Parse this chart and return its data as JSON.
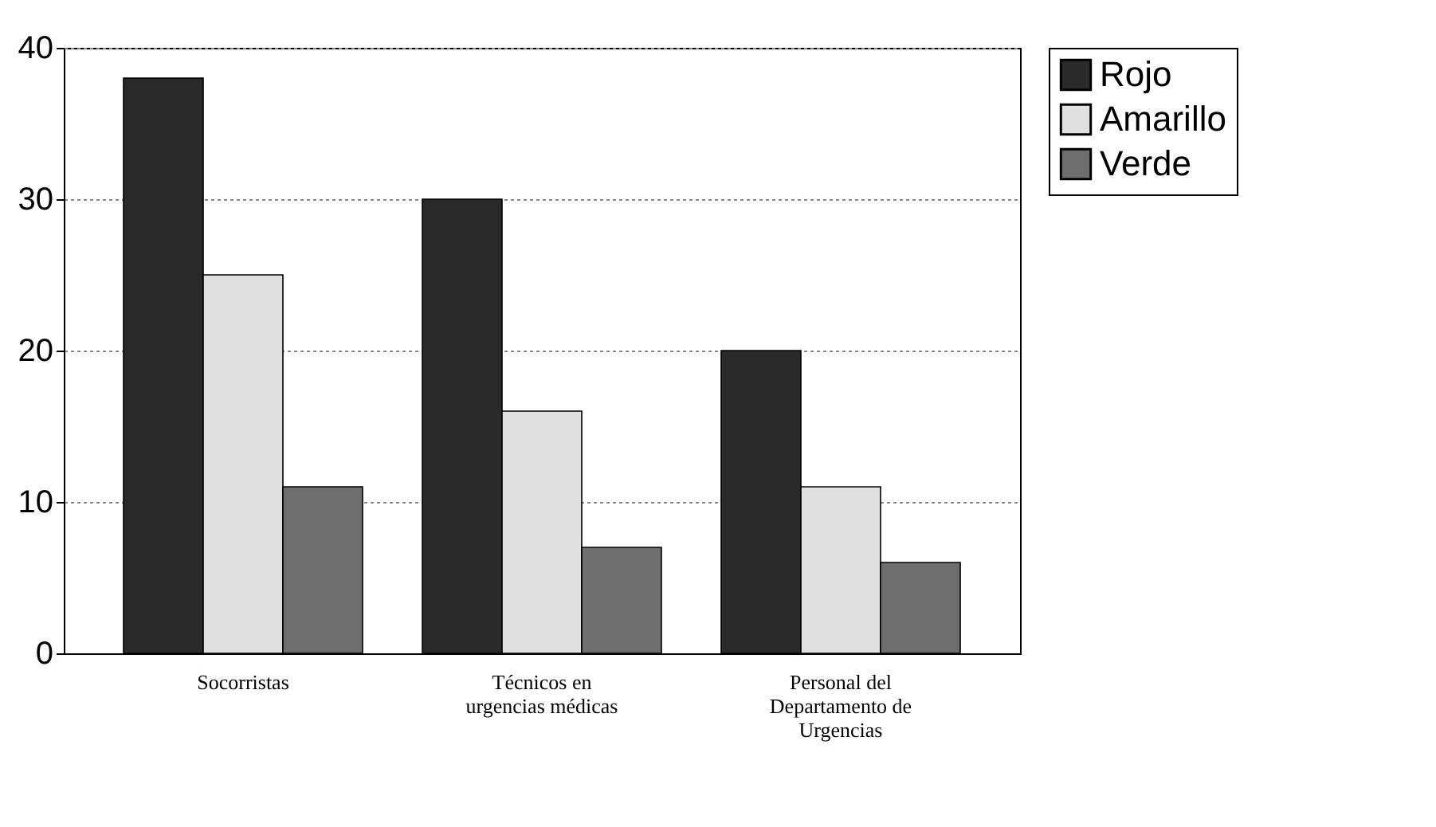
{
  "chart_data": {
    "type": "bar",
    "categories": [
      "Socorristas",
      "Técnicos en urgencias médicas",
      "Personal del Departamento de Urgencias"
    ],
    "series": [
      {
        "name": "Rojo",
        "color": "#2a2a2a",
        "values": [
          38,
          30,
          20
        ]
      },
      {
        "name": "Amarillo",
        "color": "#e0e0e0",
        "values": [
          25,
          16,
          11
        ]
      },
      {
        "name": "Verde",
        "color": "#6e6e6e",
        "values": [
          11,
          7,
          6
        ]
      }
    ],
    "ylim": [
      0,
      40
    ],
    "yticks": [
      0,
      10,
      20,
      30,
      40
    ],
    "grid": "y",
    "legend": "right"
  }
}
